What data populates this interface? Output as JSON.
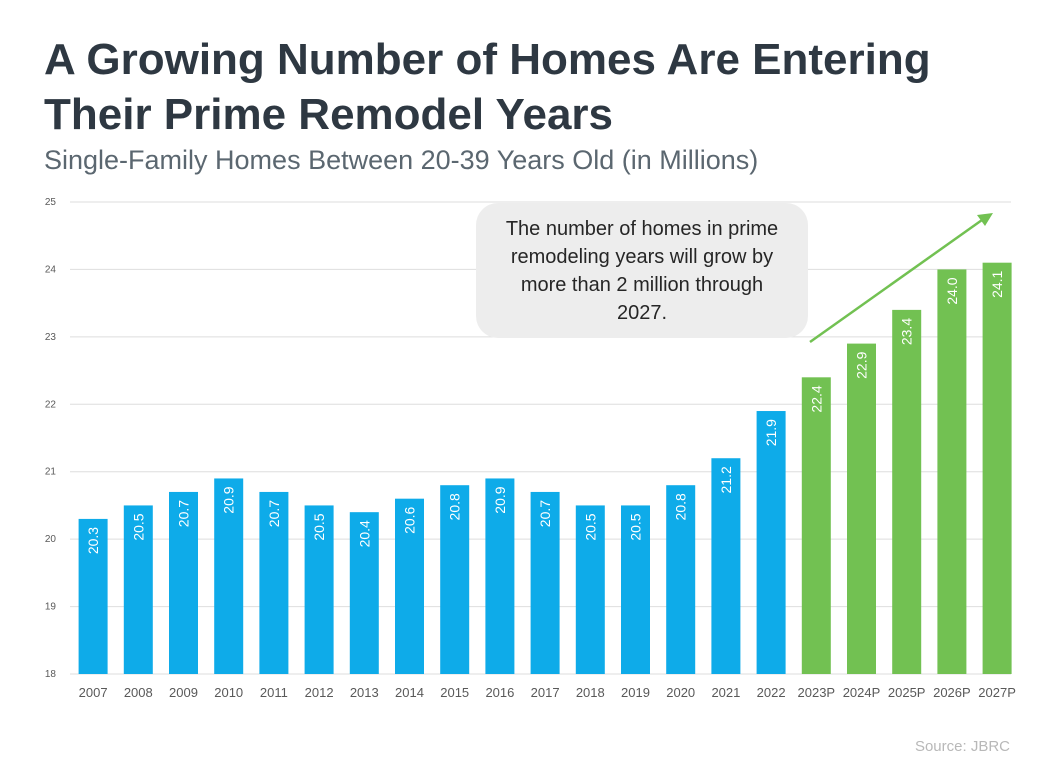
{
  "title": "A Growing Number of Homes Are Entering Their Prime Remodel Years",
  "subtitle": "Single-Family Homes Between 20-39 Years Old (in Millions)",
  "callout": "The number of homes in prime remodeling years will grow by more than 2 million through 2027.",
  "source": "Source: JBRC",
  "colors": {
    "historical": "#0eabe9",
    "projected": "#72c152",
    "arrow": "#72c152",
    "grid": "#dedede",
    "axis_text": "#595959",
    "bar_label": "#ffffff"
  },
  "chart_data": {
    "type": "bar",
    "title": "A Growing Number of Homes Are Entering Their Prime Remodel Years",
    "subtitle": "Single-Family Homes Between 20-39 Years Old (in Millions)",
    "xlabel": "",
    "ylabel": "",
    "ylim": [
      18,
      25
    ],
    "yticks": [
      18,
      19,
      20,
      21,
      22,
      23,
      24,
      25
    ],
    "grid": true,
    "categories": [
      "2007",
      "2008",
      "2009",
      "2010",
      "2011",
      "2012",
      "2013",
      "2014",
      "2015",
      "2016",
      "2017",
      "2018",
      "2019",
      "2020",
      "2021",
      "2022",
      "2023P",
      "2024P",
      "2025P",
      "2026P",
      "2027P"
    ],
    "values": [
      20.3,
      20.5,
      20.7,
      20.9,
      20.7,
      20.5,
      20.4,
      20.6,
      20.8,
      20.9,
      20.7,
      20.5,
      20.5,
      20.8,
      21.2,
      21.9,
      22.4,
      22.9,
      23.4,
      24.0,
      24.1
    ],
    "labels": [
      "20.3",
      "20.5",
      "20.7",
      "20.9",
      "20.7",
      "20.5",
      "20.4",
      "20.6",
      "20.8",
      "20.9",
      "20.7",
      "20.5",
      "20.5",
      "20.8",
      "21.2",
      "21.9",
      "22.4",
      "22.9",
      "23.4",
      "24.0",
      "24.1"
    ],
    "projected": [
      false,
      false,
      false,
      false,
      false,
      false,
      false,
      false,
      false,
      false,
      false,
      false,
      false,
      false,
      false,
      false,
      true,
      true,
      true,
      true,
      true
    ],
    "annotations": [
      "The number of homes in prime remodeling years will grow by more than 2 million through 2027.",
      "upward trend arrow over projected years"
    ]
  }
}
